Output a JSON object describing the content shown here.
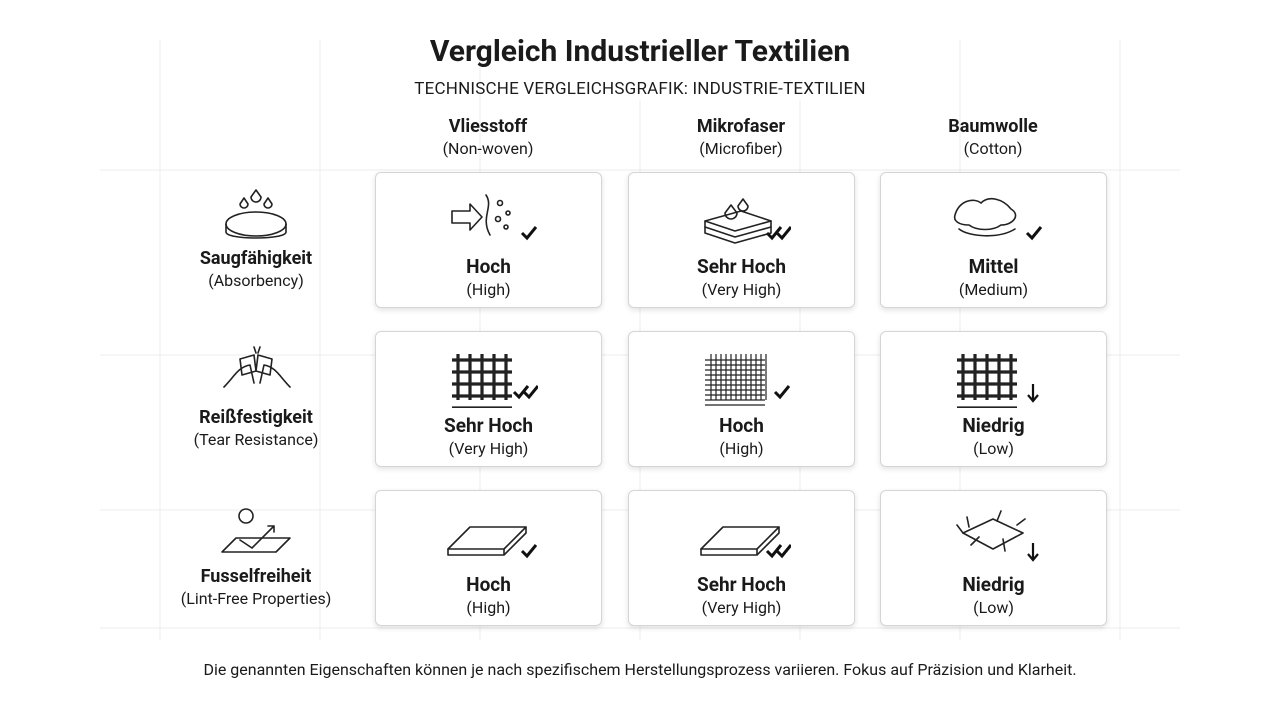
{
  "header": {
    "title": "Vergleich Industrieller Textilien",
    "subtitle": "TECHNISCHE VERGLEICHSGRAFIK: INDUSTRIE-TEXTILIEN"
  },
  "table": {
    "columns": [
      {
        "name": "Vliesstoff",
        "sub": "(Non-woven)"
      },
      {
        "name": "Mikrofaser",
        "sub": "(Microfiber)"
      },
      {
        "name": "Baumwolle",
        "sub": "(Cotton)"
      }
    ],
    "rows": [
      {
        "name": "Saugfähigkeit",
        "sub": "(Absorbency)",
        "cells": [
          {
            "value": "Hoch",
            "sub": "(High)"
          },
          {
            "value": "Sehr Hoch",
            "sub": "(Very High)"
          },
          {
            "value": "Mittel",
            "sub": "(Medium)"
          }
        ]
      },
      {
        "name": "Reißfestigkeit",
        "sub": "(Tear Resistance)",
        "cells": [
          {
            "value": "Sehr Hoch",
            "sub": "(Very High)"
          },
          {
            "value": "Hoch",
            "sub": "(High)"
          },
          {
            "value": "Niedrig",
            "sub": "(Low)"
          }
        ]
      },
      {
        "name": "Fusselfreiheit",
        "sub": "(Lint-Free Properties)",
        "cells": [
          {
            "value": "Hoch",
            "sub": "(High)"
          },
          {
            "value": "Sehr Hoch",
            "sub": "(Very High)"
          },
          {
            "value": "Niedrig",
            "sub": "(Low)"
          }
        ]
      }
    ]
  },
  "footnote": "Die genannten Eigenschaften können je nach spezifischem Herstellungsprozess variieren. Fokus auf Präzision und Klarheit."
}
